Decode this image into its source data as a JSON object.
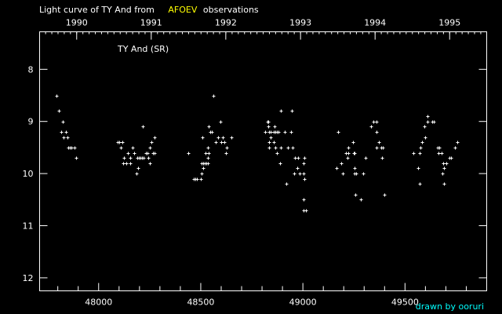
{
  "title": {
    "prefix": "Light curve of TY And from",
    "source": "AFOEV",
    "suffix": "observations"
  },
  "colors": {
    "background": "#000000",
    "foreground": "#ffffff",
    "source": "#ffff00",
    "credit": "#00ffff"
  },
  "credit": "drawn by ooruri",
  "chart_data": {
    "type": "scatter",
    "star_label": "TY And (SR)",
    "xlabel": "",
    "ylabel": "",
    "xlim": [
      47711,
      49900
    ],
    "ylim": [
      12.25,
      7.28
    ],
    "y_inverted": true,
    "grid": false,
    "x_ticks": [
      48000,
      48500,
      49000,
      49500
    ],
    "x_tick_labels": [
      "48000",
      "48500",
      "49000",
      "49500"
    ],
    "y_ticks": [
      8,
      9,
      10,
      11,
      12
    ],
    "y_tick_labels": [
      "8",
      "9",
      "10",
      "11",
      "12"
    ],
    "top_axis_years": [
      {
        "label": "1990",
        "jd": 47892.5
      },
      {
        "label": "1991",
        "jd": 48257.5
      },
      {
        "label": "1992",
        "jd": 48622.5
      },
      {
        "label": "1993",
        "jd": 48988.5
      },
      {
        "label": "1994",
        "jd": 49353.5
      },
      {
        "label": "1995",
        "jd": 49718.5
      }
    ],
    "points": [
      [
        47795,
        8.5
      ],
      [
        47806,
        8.8
      ],
      [
        47826,
        9.0
      ],
      [
        47818,
        9.2
      ],
      [
        47841,
        9.2
      ],
      [
        47829,
        9.3
      ],
      [
        47848,
        9.3
      ],
      [
        47853,
        9.5
      ],
      [
        47860,
        9.5
      ],
      [
        47868,
        9.5
      ],
      [
        47883,
        9.5
      ],
      [
        47891,
        9.7
      ],
      [
        48217,
        9.1
      ],
      [
        48275,
        9.3
      ],
      [
        48092,
        9.4
      ],
      [
        48100,
        9.4
      ],
      [
        48118,
        9.4
      ],
      [
        48260,
        9.4
      ],
      [
        48110,
        9.5
      ],
      [
        48167,
        9.5
      ],
      [
        48252,
        9.5
      ],
      [
        48144,
        9.6
      ],
      [
        48175,
        9.6
      ],
      [
        48233,
        9.6
      ],
      [
        48240,
        9.6
      ],
      [
        48267,
        9.6
      ],
      [
        48275,
        9.6
      ],
      [
        48125,
        9.7
      ],
      [
        48156,
        9.7
      ],
      [
        48190,
        9.7
      ],
      [
        48198,
        9.7
      ],
      [
        48206,
        9.7
      ],
      [
        48214,
        9.7
      ],
      [
        48221,
        9.7
      ],
      [
        48244,
        9.7
      ],
      [
        48121,
        9.8
      ],
      [
        48137,
        9.8
      ],
      [
        48156,
        9.8
      ],
      [
        48252,
        9.8
      ],
      [
        48194,
        9.9
      ],
      [
        48187,
        10.0
      ],
      [
        48563,
        8.5
      ],
      [
        48598,
        9.0
      ],
      [
        48540,
        9.1
      ],
      [
        48548,
        9.2
      ],
      [
        48555,
        9.2
      ],
      [
        48509,
        9.3
      ],
      [
        48586,
        9.3
      ],
      [
        48609,
        9.3
      ],
      [
        48651,
        9.3
      ],
      [
        48574,
        9.4
      ],
      [
        48601,
        9.4
      ],
      [
        48617,
        9.4
      ],
      [
        48536,
        9.5
      ],
      [
        48628,
        9.5
      ],
      [
        48440,
        9.6
      ],
      [
        48525,
        9.6
      ],
      [
        48540,
        9.6
      ],
      [
        48624,
        9.6
      ],
      [
        48536,
        9.7
      ],
      [
        48505,
        9.8
      ],
      [
        48513,
        9.8
      ],
      [
        48520,
        9.8
      ],
      [
        48528,
        9.8
      ],
      [
        48536,
        9.8
      ],
      [
        48513,
        9.9
      ],
      [
        48505,
        10.0
      ],
      [
        48467,
        10.1
      ],
      [
        48475,
        10.1
      ],
      [
        48482,
        10.1
      ],
      [
        48501,
        10.1
      ],
      [
        48893,
        8.8
      ],
      [
        48947,
        8.8
      ],
      [
        48828,
        9.0
      ],
      [
        48832,
        9.0
      ],
      [
        48832,
        9.1
      ],
      [
        48862,
        9.1
      ],
      [
        48816,
        9.2
      ],
      [
        48836,
        9.2
      ],
      [
        48843,
        9.2
      ],
      [
        48859,
        9.2
      ],
      [
        48866,
        9.2
      ],
      [
        48874,
        9.2
      ],
      [
        48882,
        9.2
      ],
      [
        48912,
        9.2
      ],
      [
        48943,
        9.2
      ],
      [
        48843,
        9.3
      ],
      [
        48836,
        9.4
      ],
      [
        48859,
        9.4
      ],
      [
        48836,
        9.5
      ],
      [
        48866,
        9.5
      ],
      [
        48893,
        9.5
      ],
      [
        48928,
        9.5
      ],
      [
        48951,
        9.5
      ],
      [
        48874,
        9.6
      ],
      [
        48962,
        9.7
      ],
      [
        48978,
        9.7
      ],
      [
        49008,
        9.7
      ],
      [
        48889,
        9.8
      ],
      [
        49005,
        9.8
      ],
      [
        48974,
        9.9
      ],
      [
        48957,
        10.0
      ],
      [
        48985,
        10.0
      ],
      [
        49005,
        10.0
      ],
      [
        49008,
        10.1
      ],
      [
        48920,
        10.2
      ],
      [
        49005,
        10.5
      ],
      [
        49005,
        10.7
      ],
      [
        49016,
        10.7
      ],
      [
        49346,
        9.0
      ],
      [
        49362,
        9.0
      ],
      [
        49335,
        9.1
      ],
      [
        49174,
        9.2
      ],
      [
        49362,
        9.2
      ],
      [
        49246,
        9.4
      ],
      [
        49373,
        9.4
      ],
      [
        49223,
        9.5
      ],
      [
        49362,
        9.5
      ],
      [
        49385,
        9.5
      ],
      [
        49392,
        9.5
      ],
      [
        49212,
        9.6
      ],
      [
        49223,
        9.6
      ],
      [
        49250,
        9.6
      ],
      [
        49254,
        9.6
      ],
      [
        49220,
        9.7
      ],
      [
        49308,
        9.7
      ],
      [
        49389,
        9.7
      ],
      [
        49189,
        9.8
      ],
      [
        49166,
        9.9
      ],
      [
        49254,
        9.9
      ],
      [
        49197,
        10.0
      ],
      [
        49254,
        10.0
      ],
      [
        49261,
        10.0
      ],
      [
        49296,
        10.0
      ],
      [
        49258,
        10.4
      ],
      [
        49400,
        10.4
      ],
      [
        49285,
        10.5
      ],
      [
        49611,
        8.9
      ],
      [
        49611,
        9.0
      ],
      [
        49634,
        9.0
      ],
      [
        49642,
        9.0
      ],
      [
        49596,
        9.1
      ],
      [
        49599,
        9.3
      ],
      [
        49584,
        9.4
      ],
      [
        49757,
        9.4
      ],
      [
        49577,
        9.5
      ],
      [
        49661,
        9.5
      ],
      [
        49668,
        9.5
      ],
      [
        49745,
        9.5
      ],
      [
        49542,
        9.6
      ],
      [
        49573,
        9.6
      ],
      [
        49664,
        9.6
      ],
      [
        49680,
        9.6
      ],
      [
        49719,
        9.7
      ],
      [
        49726,
        9.7
      ],
      [
        49688,
        9.8
      ],
      [
        49703,
        9.8
      ],
      [
        49565,
        9.9
      ],
      [
        49692,
        9.9
      ],
      [
        49684,
        10.0
      ],
      [
        49573,
        10.2
      ],
      [
        49692,
        10.2
      ]
    ]
  }
}
